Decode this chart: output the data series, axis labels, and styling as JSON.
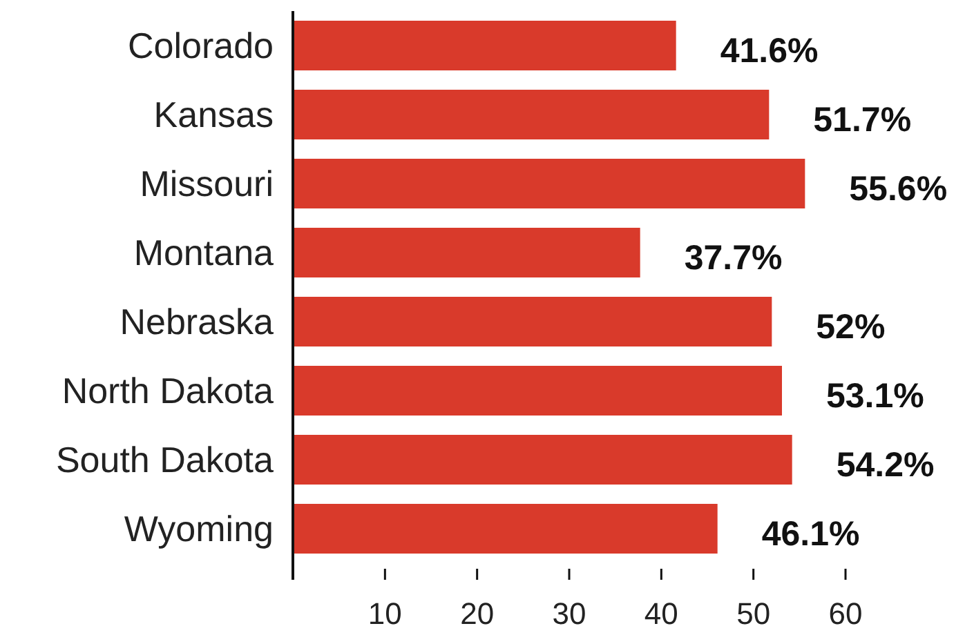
{
  "chart_data": {
    "type": "bar",
    "orientation": "horizontal",
    "categories": [
      "Colorado",
      "Kansas",
      "Missouri",
      "Montana",
      "Nebraska",
      "North Dakota",
      "South Dakota",
      "Wyoming"
    ],
    "values": [
      41.6,
      51.7,
      55.6,
      37.7,
      52,
      53.1,
      54.2,
      46.1
    ],
    "value_labels": [
      "41.6%",
      "51.7%",
      "55.6%",
      "37.7%",
      "52%",
      "53.1%",
      "54.2%",
      "46.1%"
    ],
    "color": "#d93a2b",
    "xlim": [
      0,
      60
    ],
    "xticks": [
      10,
      20,
      30,
      40,
      50,
      60
    ]
  }
}
